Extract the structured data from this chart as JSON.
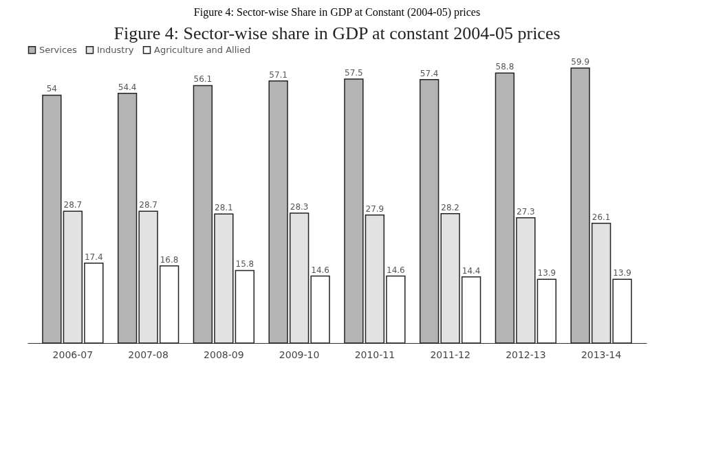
{
  "chart_data": {
    "type": "bar",
    "title": "Figure 4: Sector-wise Share in GDP at Constant (2004-05) prices",
    "subtitle": "Figure 4: Sector-wise share in GDP at constant 2004-05 prices",
    "categories": [
      "2006-07",
      "2007-08",
      "2008-09",
      "2009-10",
      "2010-11",
      "2011-12",
      "2012-13",
      "2013-14"
    ],
    "series": [
      {
        "name": "Services",
        "color": "#b4b4b4",
        "values": [
          54,
          54.4,
          56.1,
          57.1,
          57.5,
          57.4,
          58.8,
          59.9
        ]
      },
      {
        "name": "Industry",
        "color": "#e2e2e2",
        "values": [
          28.7,
          28.7,
          28.1,
          28.3,
          27.9,
          28.2,
          27.3,
          26.1
        ]
      },
      {
        "name": "Agriculture and Allied",
        "color": "#ffffff",
        "values": [
          17.4,
          16.8,
          15.8,
          14.6,
          14.6,
          14.4,
          13.9,
          13.9
        ]
      }
    ],
    "data_labels": true,
    "legend": "top",
    "grid": false,
    "tick_labels": "x"
  }
}
